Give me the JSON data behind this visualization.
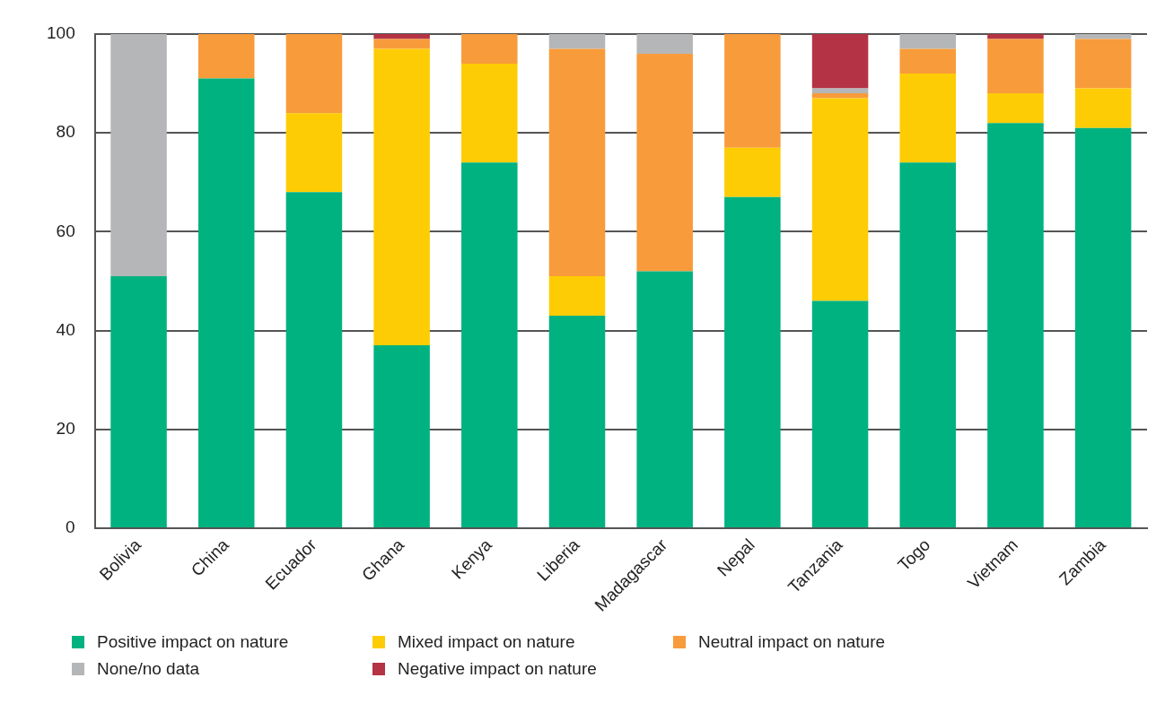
{
  "chart_data": {
    "type": "bar",
    "stacked": true,
    "categories": [
      "Bolivia",
      "China",
      "Ecuador",
      "Ghana",
      "Kenya",
      "Liberia",
      "Madagascar",
      "Nepal",
      "Tanzania",
      "Togo",
      "Vietnam",
      "Zambia"
    ],
    "series": [
      {
        "name": "Positive impact on nature",
        "color": "#00b27f",
        "values": [
          51,
          91,
          68,
          37,
          74,
          43,
          52,
          67,
          46,
          74,
          82,
          81
        ]
      },
      {
        "name": "Mixed impact on nature",
        "color": "#fecc04",
        "values": [
          0,
          0,
          16,
          60,
          20,
          8,
          0,
          10,
          41,
          18,
          6,
          8
        ]
      },
      {
        "name": "Neutral impact on nature",
        "color": "#f89b3a",
        "values": [
          0,
          9,
          16,
          2,
          6,
          46,
          44,
          23,
          1,
          5,
          11,
          10
        ]
      },
      {
        "name": "None/no data",
        "color": "#b5b6b8",
        "values": [
          49,
          0,
          0,
          0,
          0,
          3,
          4,
          0,
          1,
          3,
          0,
          1
        ]
      },
      {
        "name": "Negative impact on nature",
        "color": "#b43345",
        "values": [
          0,
          0,
          0,
          1,
          0,
          0,
          0,
          0,
          11,
          0,
          1,
          0
        ]
      }
    ],
    "ylim": [
      0,
      100
    ],
    "yticks": [
      0,
      20,
      40,
      60,
      80,
      100
    ],
    "grid": "y",
    "legend": "bottom left"
  }
}
